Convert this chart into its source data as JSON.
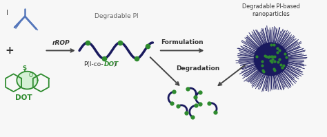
{
  "bg_color": "#f7f7f7",
  "dark_blue": "#1a1a5e",
  "green": "#2e8b2e",
  "light_green": "#d4f0d4",
  "arrow_color": "#444444",
  "title_top_right": "Degradable PI-based\nnanoparticles",
  "label_rROP": "rROP",
  "label_formulation": "Formulation",
  "label_degradation": "Degradation",
  "label_degradable_PI": "Degradable PI",
  "label_DOT": "DOT",
  "label_I": "I",
  "figsize": [
    4.74,
    1.99
  ],
  "dpi": 100,
  "xlim": [
    0,
    10
  ],
  "ylim": [
    0,
    4.2
  ]
}
